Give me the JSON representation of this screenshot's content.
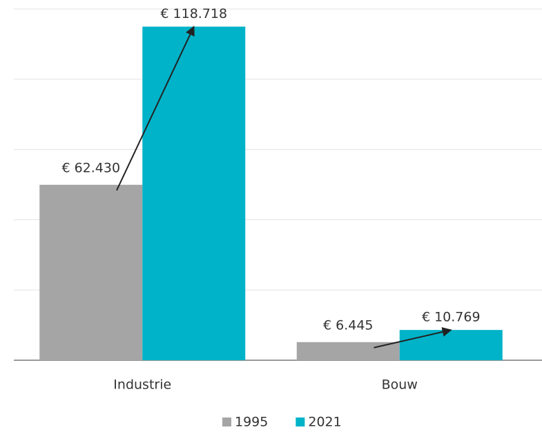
{
  "chart_data": {
    "type": "bar",
    "categories": [
      "Industrie",
      "Bouw"
    ],
    "series": [
      {
        "name": "1995",
        "color": "#a5a5a5",
        "values": [
          62430,
          6445
        ],
        "value_labels": [
          "€ 62.430",
          "€ 6.445"
        ]
      },
      {
        "name": "2021",
        "color": "#00b3c8",
        "values": [
          118718,
          10769
        ],
        "value_labels": [
          "€ 118.718",
          "€ 10.769"
        ]
      }
    ],
    "ylim": [
      0,
      125000
    ],
    "yticks": [
      0,
      25000,
      50000,
      75000,
      100000,
      125000
    ],
    "grid": true,
    "legend": "bottom"
  }
}
